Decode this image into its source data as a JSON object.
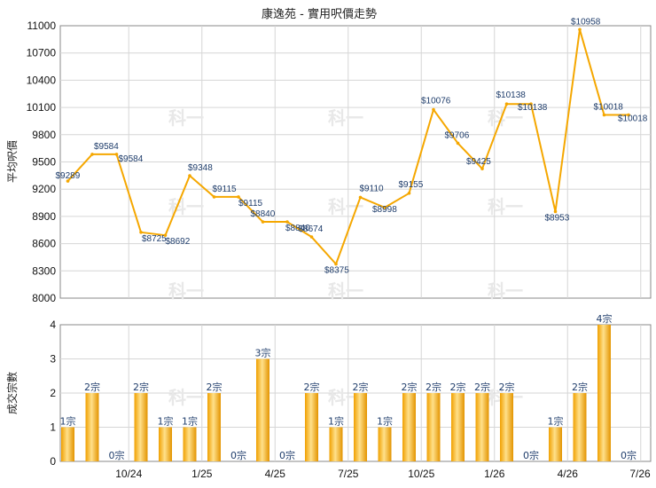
{
  "chart_data": [
    {
      "type": "line",
      "title": "康逸苑 - 實用呎價走勢",
      "ylabel": "平均呎價",
      "ylim": [
        8000,
        11000
      ],
      "yticks": [
        8000,
        8300,
        8600,
        8900,
        9200,
        9500,
        9800,
        10100,
        10400,
        10700,
        11000
      ],
      "color": "#f5a700",
      "points": [
        {
          "label": "$9289",
          "value": 9289
        },
        {
          "label": "$9584",
          "value": 9584
        },
        {
          "label": "$9584",
          "value": 9584
        },
        {
          "label": "$8725",
          "value": 8725
        },
        {
          "label": "$8692",
          "value": 8692
        },
        {
          "label": "$9348",
          "value": 9348
        },
        {
          "label": "$9115",
          "value": 9115
        },
        {
          "label": "$9115",
          "value": 9115
        },
        {
          "label": "$8840",
          "value": 8840
        },
        {
          "label": "$8840",
          "value": 8840
        },
        {
          "label": "$8674",
          "value": 8674
        },
        {
          "label": "$8375",
          "value": 8375
        },
        {
          "label": "$9110",
          "value": 9110
        },
        {
          "label": "$8998",
          "value": 8998
        },
        {
          "label": "$9155",
          "value": 9155
        },
        {
          "label": "$10076",
          "value": 10076
        },
        {
          "label": "$9706",
          "value": 9706
        },
        {
          "label": "$9425",
          "value": 9425
        },
        {
          "label": "$10138",
          "value": 10138
        },
        {
          "label": "$10138",
          "value": 10138
        },
        {
          "label": "$8953",
          "value": 8953
        },
        {
          "label": "$10958",
          "value": 10958
        },
        {
          "label": "$10018",
          "value": 10018
        },
        {
          "label": "$10018",
          "value": 10018
        }
      ]
    },
    {
      "type": "bar",
      "ylabel": "成交宗數",
      "ylim": [
        0,
        4
      ],
      "yticks": [
        0,
        1,
        2,
        3,
        4
      ],
      "color": "#f5a700",
      "xticks": [
        "10/24",
        "1/25",
        "4/25",
        "7/25",
        "10/25",
        "1/26",
        "4/26",
        "7/26"
      ],
      "bars": [
        {
          "label": "1宗",
          "value": 1
        },
        {
          "label": "2宗",
          "value": 2
        },
        {
          "label": "0宗",
          "value": 0
        },
        {
          "label": "2宗",
          "value": 2
        },
        {
          "label": "1宗",
          "value": 1
        },
        {
          "label": "1宗",
          "value": 1
        },
        {
          "label": "2宗",
          "value": 2
        },
        {
          "label": "0宗",
          "value": 0
        },
        {
          "label": "3宗",
          "value": 3
        },
        {
          "label": "0宗",
          "value": 0
        },
        {
          "label": "2宗",
          "value": 2
        },
        {
          "label": "1宗",
          "value": 1
        },
        {
          "label": "2宗",
          "value": 2
        },
        {
          "label": "1宗",
          "value": 1
        },
        {
          "label": "2宗",
          "value": 2
        },
        {
          "label": "2宗",
          "value": 2
        },
        {
          "label": "2宗",
          "value": 2
        },
        {
          "label": "2宗",
          "value": 2
        },
        {
          "label": "2宗",
          "value": 2
        },
        {
          "label": "0宗",
          "value": 0
        },
        {
          "label": "1宗",
          "value": 1
        },
        {
          "label": "2宗",
          "value": 2
        },
        {
          "label": "4宗",
          "value": 4
        },
        {
          "label": "0宗",
          "value": 0
        }
      ]
    }
  ]
}
